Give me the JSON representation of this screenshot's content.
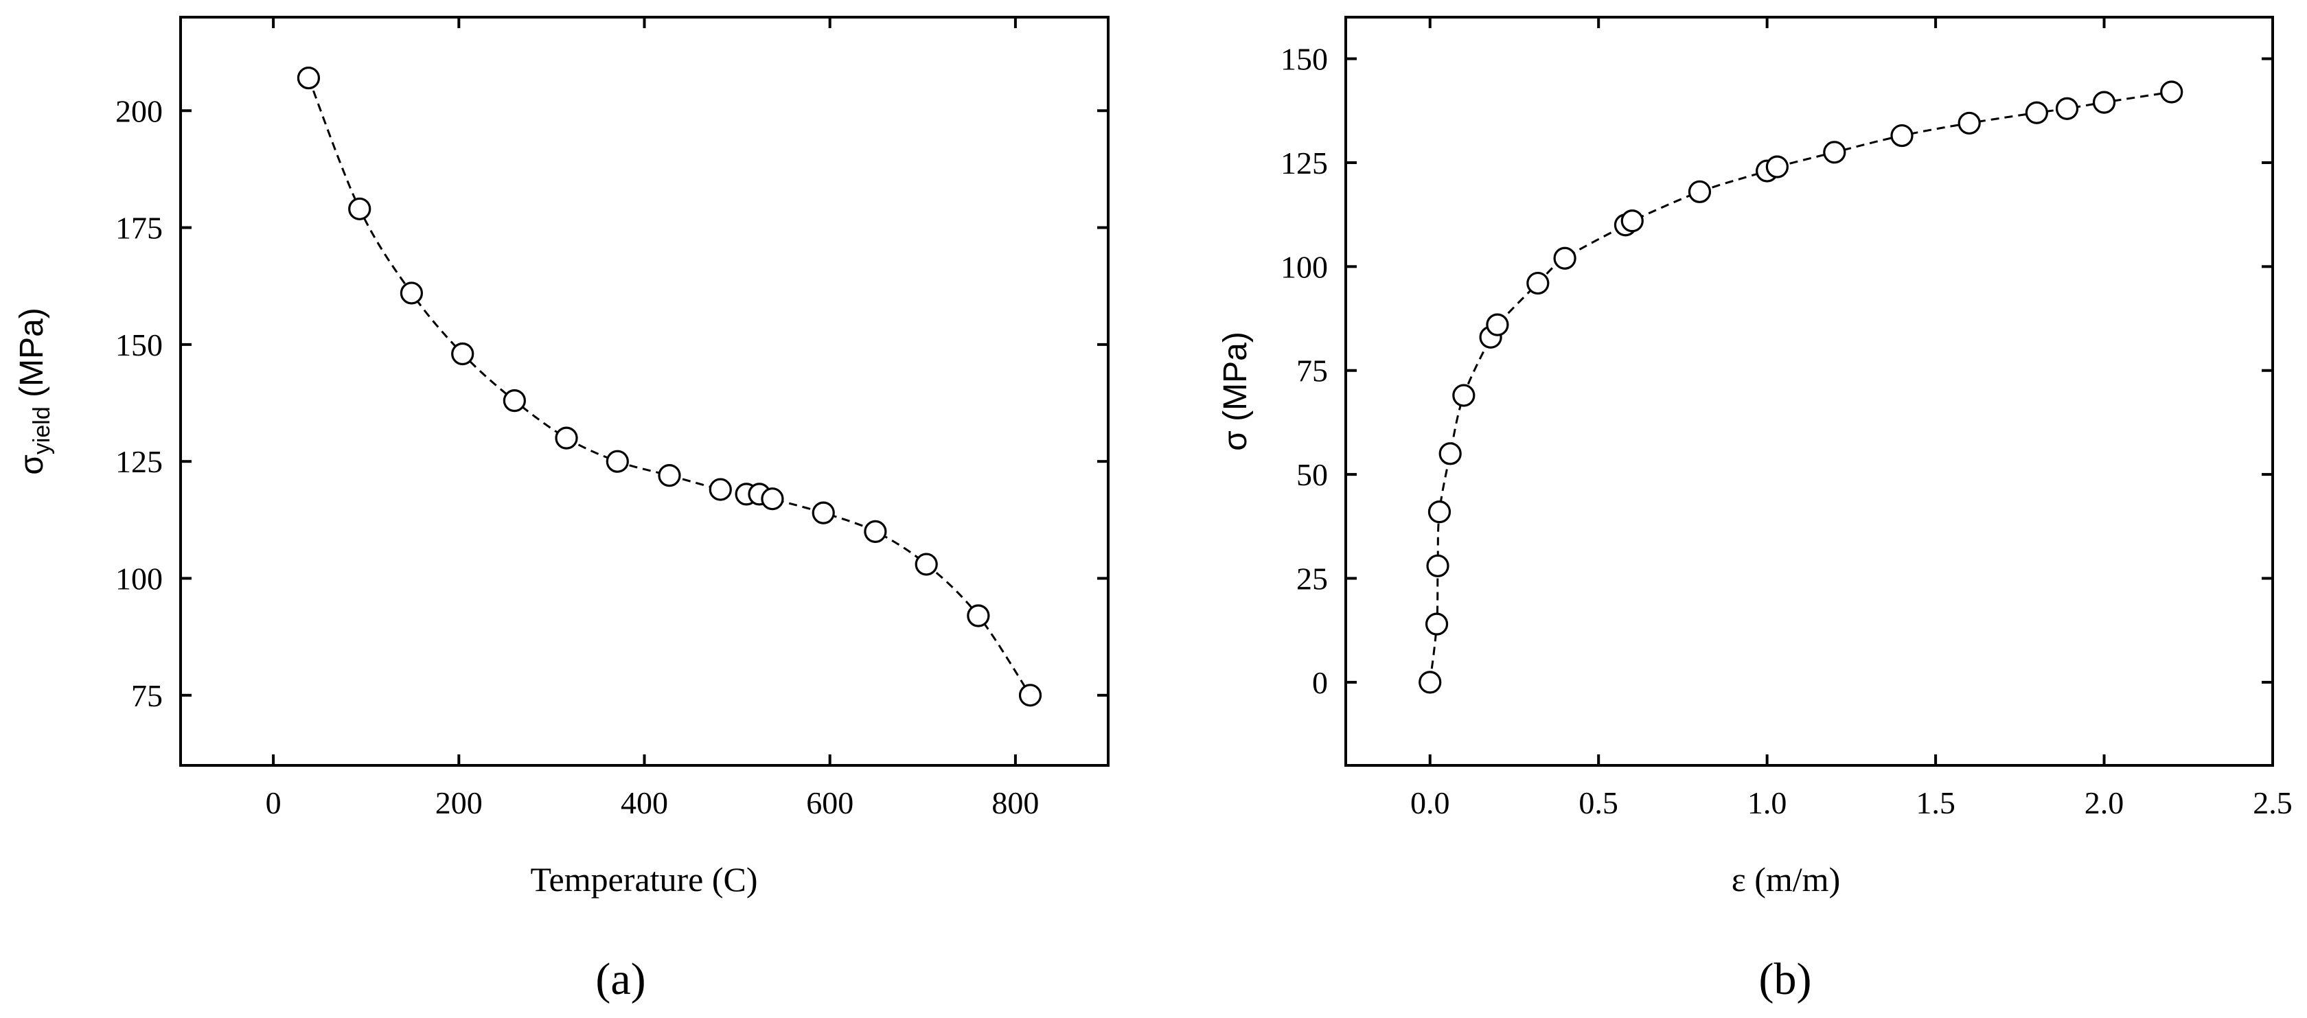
{
  "chart_data": [
    {
      "type": "scatter",
      "panel_label": "(a)",
      "xlabel": "Temperature (C)",
      "ylabel_main": "σ",
      "ylabel_sub": "yield",
      "ylabel_unit": " (MPa)",
      "xlim": [
        -100,
        900
      ],
      "ylim": [
        60,
        220
      ],
      "xticks": [
        0,
        200,
        400,
        600,
        800
      ],
      "yticks": [
        75,
        100,
        125,
        150,
        175,
        200
      ],
      "xtick_labels": [
        "0",
        "200",
        "400",
        "600",
        "800"
      ],
      "ytick_labels": [
        "75",
        "100",
        "125",
        "150",
        "175",
        "200"
      ],
      "grid": false,
      "series": [
        {
          "marker": "open-circle",
          "line": "dashed",
          "x": [
            38,
            93,
            149,
            204,
            260,
            316,
            371,
            427,
            482,
            510,
            524,
            538,
            593,
            649,
            704,
            760,
            816
          ],
          "y": [
            207,
            179,
            161,
            148,
            138,
            130,
            125,
            122,
            119,
            118,
            118,
            117,
            114,
            110,
            103,
            92,
            75
          ]
        }
      ]
    },
    {
      "type": "scatter",
      "panel_label": "(b)",
      "xlabel": "ε (m/m)",
      "ylabel_main": "σ (MPa)",
      "xlim": [
        -0.25,
        2.5
      ],
      "ylim": [
        -20,
        160
      ],
      "xticks": [
        0.0,
        0.5,
        1.0,
        1.5,
        2.0,
        2.5
      ],
      "yticks": [
        0,
        25,
        50,
        75,
        100,
        125,
        150
      ],
      "xtick_labels": [
        "0.0",
        "0.5",
        "1.0",
        "1.5",
        "2.0",
        "2.5"
      ],
      "ytick_labels": [
        "0",
        "25",
        "50",
        "75",
        "100",
        "125",
        "150"
      ],
      "grid": false,
      "series": [
        {
          "marker": "open-circle",
          "line": "dashed",
          "x": [
            0,
            0.02,
            0.023,
            0.028,
            0.06,
            0.1,
            0.18,
            0.2,
            0.32,
            0.4,
            0.58,
            0.6,
            0.8,
            1.0,
            1.03,
            1.2,
            1.4,
            1.6,
            1.8,
            1.89,
            2.0,
            2.2
          ],
          "y": [
            0,
            14,
            28,
            41,
            55,
            69,
            83,
            86,
            96,
            102,
            110,
            111,
            118,
            123,
            124,
            127.5,
            131.5,
            134.5,
            137,
            138,
            139.5,
            142
          ]
        }
      ]
    }
  ]
}
